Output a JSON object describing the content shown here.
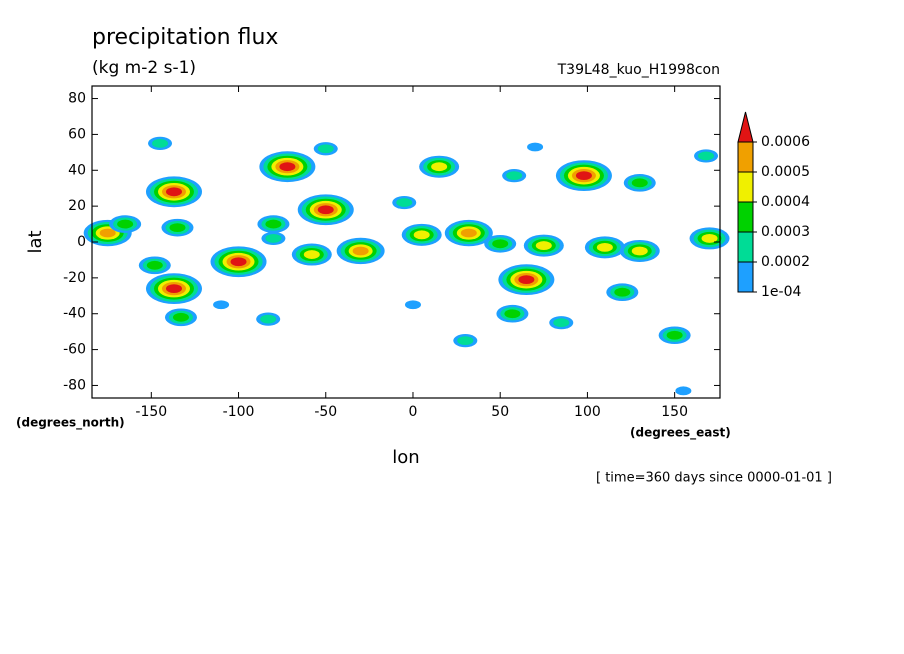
{
  "chart_data": {
    "type": "contour",
    "title": "precipitation flux",
    "subtitle": "(kg m-2 s-1)",
    "run_label": "T39L48_kuo_H1998con",
    "x_label": "lon",
    "y_label": "lat",
    "x_units": "(degrees_east)",
    "y_units": "(degrees_north)",
    "time_label": "[ time=360 days since 0000-01-01 ]",
    "xlim": [
      -184,
      176
    ],
    "ylim": [
      -87,
      87
    ],
    "xticks": [
      -150,
      -100,
      -50,
      0,
      50,
      100,
      150
    ],
    "yticks": [
      -80,
      -60,
      -40,
      -20,
      0,
      20,
      40,
      60,
      80
    ],
    "levels": [
      {
        "value": 0.0001,
        "label": "1e-04"
      },
      0.0002,
      0.0003,
      0.0004,
      0.0005,
      0.0006
    ],
    "colors": [
      "#1ea0ff",
      "#00dc96",
      "#00d200",
      "#f0f000",
      "#f0a000",
      "#e01414"
    ],
    "cells": {
      "lon": [
        -145,
        -137,
        -135,
        -175,
        -165,
        -148,
        -137,
        -133,
        -100,
        -80,
        -72,
        -50,
        -50,
        -58,
        -30,
        -5,
        15,
        5,
        32,
        50,
        58,
        65,
        75,
        57,
        70,
        98,
        110,
        130,
        170,
        130,
        168,
        150,
        120,
        30,
        0,
        155,
        -83,
        -110,
        -80,
        85
      ],
      "lat": [
        55,
        28,
        8,
        5,
        10,
        -13,
        -26,
        -42,
        -11,
        10,
        42,
        18,
        52,
        -7,
        -5,
        22,
        42,
        4,
        5,
        -1,
        37,
        -21,
        -2,
        -40,
        53,
        37,
        -3,
        -5,
        2,
        33,
        48,
        -52,
        -28,
        -55,
        -35,
        -83,
        -43,
        -35,
        2,
        -45
      ],
      "values": [
        0.00025,
        0.00065,
        0.00035,
        0.0005,
        0.0003,
        0.00035,
        0.00065,
        0.00035,
        0.00065,
        0.00035,
        0.00065,
        0.00065,
        0.00025,
        0.00045,
        0.00055,
        0.00025,
        0.00045,
        0.00045,
        0.00055,
        0.0003,
        0.00025,
        0.00065,
        0.00045,
        0.00035,
        0.00015,
        0.00065,
        0.00045,
        0.00045,
        0.00045,
        0.00035,
        0.00025,
        0.00035,
        0.00035,
        0.00025,
        0.00015,
        0.00015,
        0.00025,
        0.00015,
        0.00025,
        0.00025
      ]
    }
  }
}
